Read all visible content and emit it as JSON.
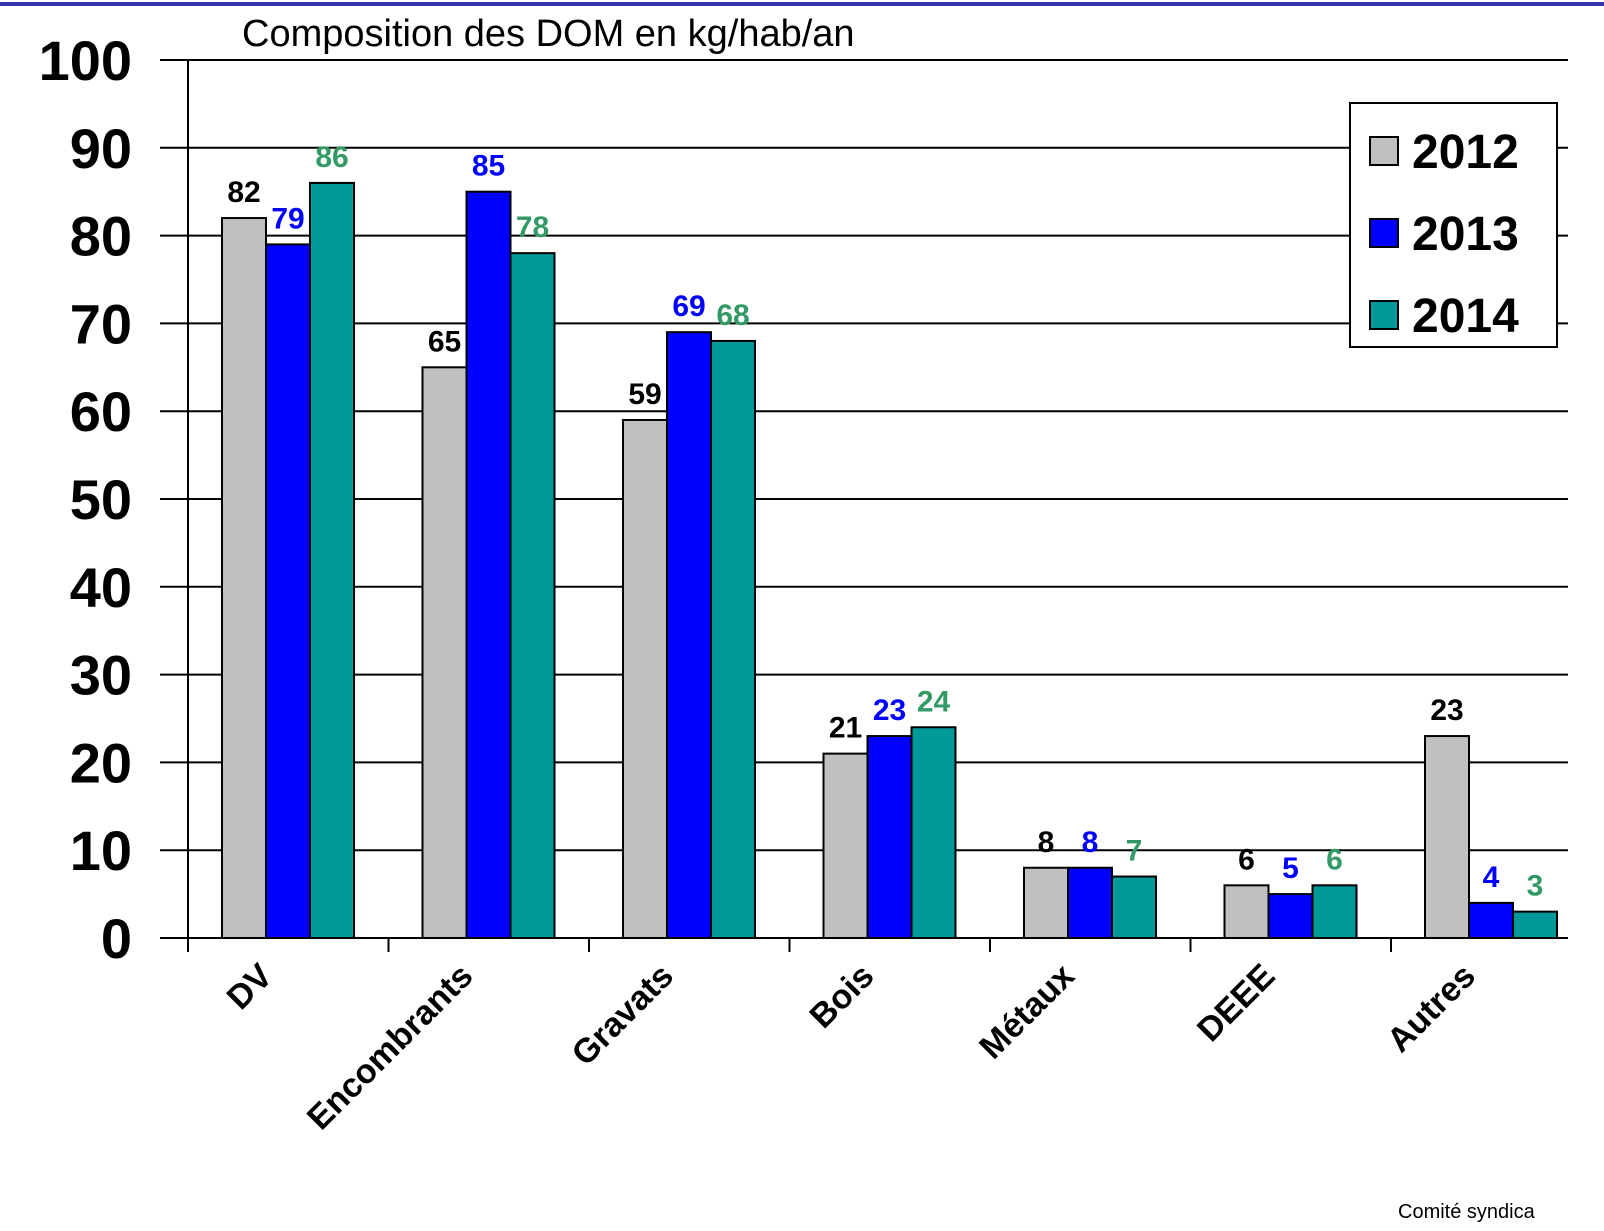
{
  "chart_data": {
    "type": "bar",
    "title": "Composition des DOM en kg/hab/an",
    "footer": "Comité syndica",
    "categories": [
      "DV",
      "Encombrants",
      "Gravats",
      "Bois",
      "Métaux",
      "DEEE",
      "Autres"
    ],
    "series": [
      {
        "name": "2012",
        "color": "#c0c0c0",
        "label_color": "#000000",
        "values": [
          82,
          65,
          59,
          21,
          8,
          6,
          23
        ]
      },
      {
        "name": "2013",
        "color": "#0000ff",
        "label_color": "#0000ff",
        "values": [
          79,
          85,
          69,
          23,
          8,
          5,
          4
        ]
      },
      {
        "name": "2014",
        "color": "#009999",
        "label_color": "#339966",
        "values": [
          86,
          78,
          68,
          24,
          7,
          6,
          3
        ]
      }
    ],
    "ylim": [
      0,
      100
    ],
    "yticks": [
      0,
      10,
      20,
      30,
      40,
      50,
      60,
      70,
      80,
      90,
      100
    ],
    "grid": true,
    "legend": "upper right"
  }
}
